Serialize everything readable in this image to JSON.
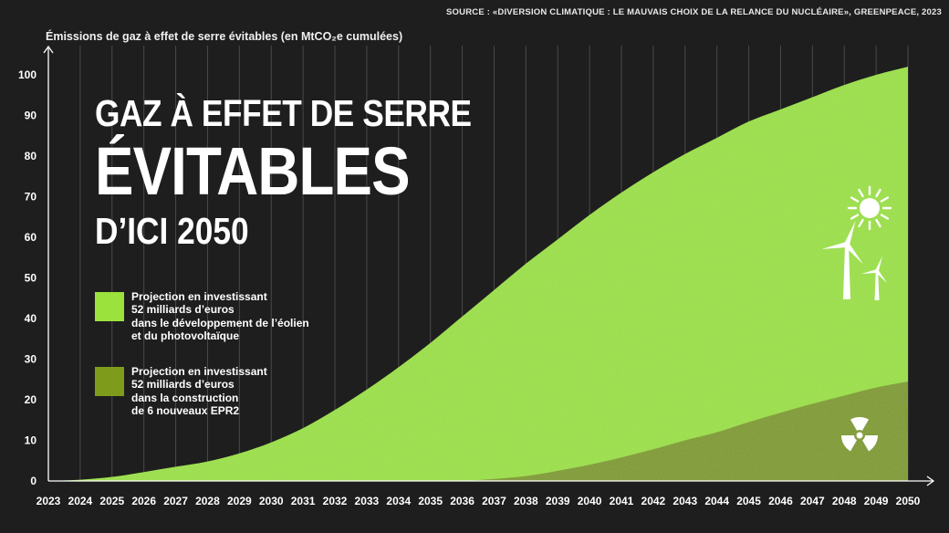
{
  "source": "SOURCE : «DIVERSION CLIMATIQUE : LE MAUVAIS CHOIX DE LA RELANCE DU NUCLÉAIRE», GREENPEACE, 2023",
  "title": {
    "line1": "GAZ À EFFET DE SERRE",
    "line2": "ÉVITABLES",
    "line3": "D’ICI 2050"
  },
  "legend": [
    {
      "lines": [
        "Projection en investissant",
        "52 milliards d’euros",
        "dans le développement de l’éolien",
        "et du photovoltaïque"
      ],
      "color": "#9be23c"
    },
    {
      "lines": [
        "Projection en investissant",
        "52 milliards d’euros",
        "dans la construction",
        "de 6 nouveaux EPR2"
      ],
      "color": "#7f9b1c"
    }
  ],
  "icons": {
    "renewables": "sun-and-wind-turbines-icon",
    "nuclear": "radiation-icon"
  },
  "chart_data": {
    "type": "area",
    "ylabel": "Émissions de gaz à effet de serre évitables (en MtCO₂e cumulées)",
    "xlabel": "",
    "x": [
      2023,
      2024,
      2025,
      2026,
      2027,
      2028,
      2029,
      2030,
      2031,
      2032,
      2033,
      2034,
      2035,
      2036,
      2037,
      2038,
      2039,
      2040,
      2041,
      2042,
      2043,
      2044,
      2045,
      2046,
      2047,
      2048,
      2049,
      2050
    ],
    "yticks": [
      0,
      10,
      20,
      30,
      40,
      50,
      60,
      70,
      80,
      90,
      100
    ],
    "ylim": [
      0,
      105
    ],
    "series": [
      {
        "name": "Projection en investissant 52 milliards d’euros dans le développement de l’éolien et du photovoltaïque",
        "color": "#9be23c",
        "values": [
          0,
          0.3,
          1.0,
          2.2,
          3.5,
          4.8,
          6.8,
          9.5,
          13,
          17.5,
          22.5,
          28,
          34,
          40.5,
          47,
          53.5,
          59.5,
          65.5,
          71,
          76,
          80.5,
          84.5,
          88.5,
          91.5,
          94.5,
          97.5,
          100,
          102
        ]
      },
      {
        "name": "Projection en investissant 52 milliards d’euros dans la construction de 6 nouveaux EPR2",
        "color": "#7f9b1c",
        "values": [
          0,
          0,
          0,
          0,
          0,
          0,
          0,
          0,
          0,
          0,
          0,
          0,
          0,
          0,
          0.5,
          1.2,
          2.5,
          4,
          5.8,
          7.8,
          10,
          12,
          14.5,
          16.8,
          19,
          21,
          23,
          24.5
        ]
      }
    ],
    "grid": "vertical",
    "legend_placement": "left"
  }
}
